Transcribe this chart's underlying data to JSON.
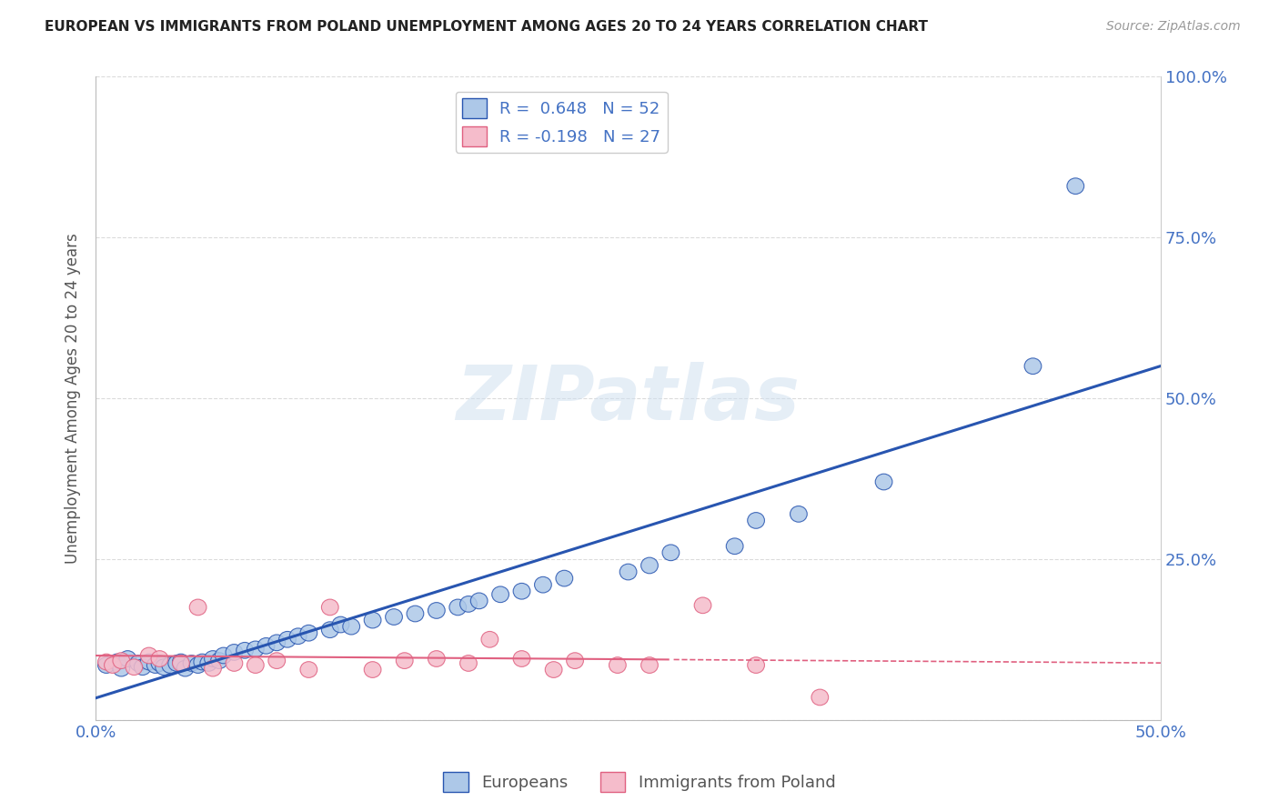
{
  "title": "EUROPEAN VS IMMIGRANTS FROM POLAND UNEMPLOYMENT AMONG AGES 20 TO 24 YEARS CORRELATION CHART",
  "source": "Source: ZipAtlas.com",
  "ylabel": "Unemployment Among Ages 20 to 24 years",
  "xlim": [
    0.0,
    0.5
  ],
  "ylim": [
    0.0,
    1.0
  ],
  "xticks": [
    0.0,
    0.1,
    0.2,
    0.3,
    0.4,
    0.5
  ],
  "xtick_labels": [
    "0.0%",
    "",
    "",
    "",
    "",
    "50.0%"
  ],
  "yticks": [
    0.0,
    0.25,
    0.5,
    0.75,
    1.0
  ],
  "ytick_labels_right": [
    "",
    "25.0%",
    "50.0%",
    "75.0%",
    "100.0%"
  ],
  "R_european": 0.648,
  "N_european": 52,
  "R_poland": -0.198,
  "N_poland": 27,
  "european_color": "#adc8e8",
  "poland_color": "#f5bccb",
  "line_european_color": "#2855b0",
  "line_poland_color": "#e06080",
  "background_color": "#ffffff",
  "watermark": "ZIPatlas",
  "legend_label_1": "Europeans",
  "legend_label_2": "Immigrants from Poland",
  "european_x": [
    0.005,
    0.01,
    0.012,
    0.015,
    0.02,
    0.022,
    0.025,
    0.028,
    0.03,
    0.032,
    0.035,
    0.038,
    0.04,
    0.042,
    0.045,
    0.048,
    0.05,
    0.053,
    0.055,
    0.058,
    0.06,
    0.065,
    0.07,
    0.075,
    0.08,
    0.085,
    0.09,
    0.095,
    0.1,
    0.11,
    0.115,
    0.12,
    0.13,
    0.14,
    0.15,
    0.16,
    0.17,
    0.175,
    0.18,
    0.19,
    0.2,
    0.21,
    0.22,
    0.25,
    0.26,
    0.27,
    0.3,
    0.31,
    0.33,
    0.37,
    0.44,
    0.46
  ],
  "european_y": [
    0.085,
    0.09,
    0.08,
    0.095,
    0.088,
    0.082,
    0.09,
    0.085,
    0.088,
    0.082,
    0.085,
    0.088,
    0.09,
    0.08,
    0.088,
    0.085,
    0.09,
    0.088,
    0.095,
    0.092,
    0.1,
    0.105,
    0.108,
    0.11,
    0.115,
    0.12,
    0.125,
    0.13,
    0.135,
    0.14,
    0.148,
    0.145,
    0.155,
    0.16,
    0.165,
    0.17,
    0.175,
    0.18,
    0.185,
    0.195,
    0.2,
    0.21,
    0.22,
    0.23,
    0.24,
    0.26,
    0.27,
    0.31,
    0.32,
    0.37,
    0.55,
    0.83
  ],
  "poland_x": [
    0.005,
    0.008,
    0.012,
    0.018,
    0.025,
    0.03,
    0.04,
    0.048,
    0.055,
    0.065,
    0.075,
    0.085,
    0.1,
    0.11,
    0.13,
    0.145,
    0.16,
    0.175,
    0.185,
    0.2,
    0.215,
    0.225,
    0.245,
    0.26,
    0.285,
    0.31,
    0.34
  ],
  "poland_y": [
    0.09,
    0.085,
    0.092,
    0.082,
    0.1,
    0.095,
    0.088,
    0.175,
    0.08,
    0.088,
    0.085,
    0.092,
    0.078,
    0.175,
    0.078,
    0.092,
    0.095,
    0.088,
    0.125,
    0.095,
    0.078,
    0.092,
    0.085,
    0.085,
    0.178,
    0.085,
    0.035
  ]
}
